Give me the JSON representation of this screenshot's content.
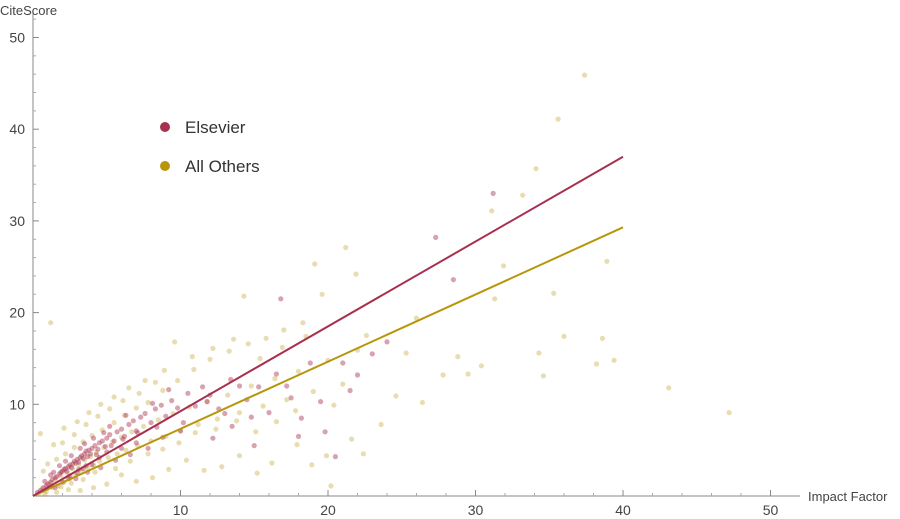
{
  "chart_data": {
    "type": "scatter",
    "title": "",
    "xlabel": "Impact Factor",
    "ylabel": "CiteScore",
    "xlim": [
      0,
      52
    ],
    "ylim": [
      0,
      53
    ],
    "xticks": [
      10,
      20,
      30,
      40,
      50
    ],
    "yticks": [
      10,
      20,
      30,
      40,
      50
    ],
    "legend_position": "top-left",
    "colors": {
      "Elsevier": "#a8304f",
      "All Others": "#b8960c"
    },
    "series": [
      {
        "name": "Elsevier",
        "fit_line": {
          "x": [
            0,
            40
          ],
          "y": [
            0,
            37
          ]
        },
        "points": [
          [
            0.3,
            0.4
          ],
          [
            0.5,
            0.6
          ],
          [
            0.7,
            0.9
          ],
          [
            0.9,
            1.1
          ],
          [
            1.0,
            1.3
          ],
          [
            1.2,
            1.5
          ],
          [
            1.3,
            1.8
          ],
          [
            1.5,
            2.0
          ],
          [
            1.6,
            2.1
          ],
          [
            1.8,
            2.4
          ],
          [
            1.9,
            2.6
          ],
          [
            2.0,
            2.7
          ],
          [
            2.1,
            2.9
          ],
          [
            2.2,
            3.0
          ],
          [
            2.3,
            2.7
          ],
          [
            2.4,
            3.2
          ],
          [
            2.5,
            3.4
          ],
          [
            2.6,
            3.1
          ],
          [
            2.7,
            3.5
          ],
          [
            2.8,
            3.8
          ],
          [
            2.9,
            3.6
          ],
          [
            3.0,
            4.0
          ],
          [
            3.1,
            3.7
          ],
          [
            3.2,
            4.2
          ],
          [
            3.3,
            4.4
          ],
          [
            3.4,
            4.1
          ],
          [
            3.5,
            4.6
          ],
          [
            3.6,
            4.9
          ],
          [
            3.7,
            4.3
          ],
          [
            3.8,
            5.0
          ],
          [
            3.9,
            4.6
          ],
          [
            4.0,
            5.2
          ],
          [
            4.2,
            5.5
          ],
          [
            4.4,
            5.1
          ],
          [
            4.5,
            5.8
          ],
          [
            4.7,
            6.0
          ],
          [
            4.9,
            5.4
          ],
          [
            5.0,
            6.3
          ],
          [
            5.2,
            6.7
          ],
          [
            5.5,
            6.0
          ],
          [
            5.7,
            7.0
          ],
          [
            6.0,
            7.3
          ],
          [
            6.2,
            6.5
          ],
          [
            6.5,
            7.8
          ],
          [
            6.8,
            8.2
          ],
          [
            7.0,
            7.1
          ],
          [
            7.3,
            8.6
          ],
          [
            7.6,
            9.0
          ],
          [
            8.0,
            8.0
          ],
          [
            8.3,
            9.5
          ],
          [
            8.7,
            9.9
          ],
          [
            9.0,
            8.7
          ],
          [
            9.4,
            10.4
          ],
          [
            9.8,
            9.6
          ],
          [
            10.5,
            11.2
          ],
          [
            11.0,
            9.8
          ],
          [
            11.5,
            11.9
          ],
          [
            12.0,
            11.0
          ],
          [
            12.6,
            9.5
          ],
          [
            13.4,
            12.7
          ],
          [
            14.0,
            12.0
          ],
          [
            14.5,
            10.5
          ],
          [
            15.3,
            11.9
          ],
          [
            15.0,
            5.5
          ],
          [
            16.5,
            13.3
          ],
          [
            16.8,
            21.5
          ],
          [
            17.5,
            10.7
          ],
          [
            18.2,
            8.5
          ],
          [
            18.8,
            14.5
          ],
          [
            19.5,
            10.3
          ],
          [
            19.8,
            7.0
          ],
          [
            21.0,
            14.5
          ],
          [
            22.0,
            13.2
          ],
          [
            23.0,
            15.5
          ],
          [
            24.0,
            16.8
          ],
          [
            27.3,
            28.2
          ],
          [
            28.5,
            23.6
          ],
          [
            31.2,
            33.0
          ],
          [
            1.5,
            0.9
          ],
          [
            2.0,
            1.5
          ],
          [
            2.4,
            1.9
          ],
          [
            3.0,
            2.5
          ],
          [
            3.4,
            3.0
          ],
          [
            4.0,
            3.4
          ],
          [
            4.5,
            4.2
          ],
          [
            5.0,
            4.8
          ],
          [
            6.0,
            5.2
          ],
          [
            7.0,
            5.8
          ],
          [
            1.2,
            2.3
          ],
          [
            1.8,
            3.3
          ],
          [
            2.6,
            4.4
          ],
          [
            3.2,
            5.2
          ],
          [
            4.1,
            6.3
          ],
          [
            5.2,
            7.6
          ],
          [
            0.8,
            1.6
          ],
          [
            1.4,
            2.6
          ],
          [
            2.2,
            3.8
          ],
          [
            3.5,
            5.7
          ],
          [
            4.8,
            6.9
          ],
          [
            6.3,
            8.8
          ],
          [
            8.1,
            10.1
          ],
          [
            9.2,
            11.6
          ],
          [
            10.2,
            8.0
          ],
          [
            11.8,
            10.3
          ],
          [
            13.0,
            9.0
          ],
          [
            2.9,
            1.9
          ],
          [
            3.7,
            2.6
          ],
          [
            4.6,
            3.1
          ],
          [
            5.6,
            3.9
          ],
          [
            6.6,
            4.5
          ],
          [
            7.8,
            5.2
          ],
          [
            8.8,
            6.4
          ],
          [
            10.0,
            7.1
          ],
          [
            12.2,
            6.3
          ],
          [
            13.5,
            7.6
          ],
          [
            14.8,
            8.6
          ],
          [
            16.0,
            9.1
          ],
          [
            17.2,
            12.0
          ],
          [
            18.0,
            6.5
          ],
          [
            20.5,
            4.3
          ],
          [
            21.5,
            11.5
          ],
          [
            2.5,
            2.2
          ],
          [
            3.1,
            2.9
          ],
          [
            3.6,
            3.3
          ],
          [
            4.3,
            4.5
          ],
          [
            5.3,
            5.5
          ],
          [
            6.1,
            6.2
          ],
          [
            7.1,
            6.9
          ],
          [
            8.4,
            7.5
          ]
        ]
      },
      {
        "name": "All Others",
        "fit_line": {
          "x": [
            0,
            40
          ],
          "y": [
            0,
            29.3
          ]
        },
        "points": [
          [
            0.4,
            0.3
          ],
          [
            0.6,
            0.8
          ],
          [
            0.9,
            0.5
          ],
          [
            1.1,
            1.4
          ],
          [
            1.3,
            0.9
          ],
          [
            1.5,
            1.7
          ],
          [
            1.7,
            1.1
          ],
          [
            1.9,
            2.2
          ],
          [
            2.1,
            1.5
          ],
          [
            2.3,
            2.5
          ],
          [
            2.5,
            1.9
          ],
          [
            2.7,
            3.0
          ],
          [
            2.9,
            2.3
          ],
          [
            3.1,
            3.4
          ],
          [
            3.3,
            2.7
          ],
          [
            3.5,
            3.9
          ],
          [
            3.7,
            3.1
          ],
          [
            3.9,
            4.3
          ],
          [
            4.1,
            3.4
          ],
          [
            4.3,
            4.8
          ],
          [
            4.5,
            3.8
          ],
          [
            4.8,
            5.3
          ],
          [
            5.1,
            4.2
          ],
          [
            5.4,
            5.9
          ],
          [
            5.7,
            4.6
          ],
          [
            6.0,
            6.4
          ],
          [
            6.3,
            5.0
          ],
          [
            6.7,
            7.0
          ],
          [
            7.1,
            5.5
          ],
          [
            7.5,
            7.6
          ],
          [
            8.0,
            6.0
          ],
          [
            8.5,
            8.3
          ],
          [
            9.0,
            6.5
          ],
          [
            9.5,
            9.0
          ],
          [
            10.0,
            7.1
          ],
          [
            10.6,
            9.7
          ],
          [
            11.2,
            7.8
          ],
          [
            11.8,
            10.3
          ],
          [
            12.5,
            8.4
          ],
          [
            13.2,
            11.0
          ],
          [
            14.0,
            9.1
          ],
          [
            14.8,
            12.0
          ],
          [
            15.6,
            9.8
          ],
          [
            16.4,
            12.8
          ],
          [
            17.2,
            10.5
          ],
          [
            18.0,
            13.6
          ],
          [
            19.0,
            11.4
          ],
          [
            20.0,
            14.8
          ],
          [
            21.0,
            12.2
          ],
          [
            22.0,
            15.9
          ],
          [
            0.7,
            2.7
          ],
          [
            1.0,
            3.5
          ],
          [
            1.6,
            4.0
          ],
          [
            2.2,
            4.6
          ],
          [
            2.8,
            5.3
          ],
          [
            3.4,
            5.9
          ],
          [
            4.0,
            6.6
          ],
          [
            4.7,
            7.2
          ],
          [
            5.5,
            8.0
          ],
          [
            6.2,
            8.8
          ],
          [
            7.0,
            9.6
          ],
          [
            7.8,
            10.2
          ],
          [
            8.8,
            11.5
          ],
          [
            9.8,
            12.6
          ],
          [
            10.9,
            13.8
          ],
          [
            12.0,
            14.9
          ],
          [
            13.3,
            15.8
          ],
          [
            14.6,
            16.6
          ],
          [
            15.8,
            17.2
          ],
          [
            17.0,
            18.1
          ],
          [
            18.3,
            18.9
          ],
          [
            1.2,
            18.9
          ],
          [
            0.5,
            6.8
          ],
          [
            1.4,
            5.6
          ],
          [
            2.1,
            7.4
          ],
          [
            3.0,
            8.1
          ],
          [
            3.8,
            9.1
          ],
          [
            4.6,
            10.0
          ],
          [
            5.5,
            10.8
          ],
          [
            6.5,
            11.8
          ],
          [
            7.6,
            12.6
          ],
          [
            8.9,
            13.7
          ],
          [
            9.6,
            16.8
          ],
          [
            10.8,
            15.2
          ],
          [
            12.2,
            16.1
          ],
          [
            13.6,
            17.1
          ],
          [
            14.3,
            21.8
          ],
          [
            15.4,
            15.0
          ],
          [
            16.9,
            16.2
          ],
          [
            18.5,
            17.4
          ],
          [
            19.1,
            25.3
          ],
          [
            19.6,
            22.0
          ],
          [
            21.2,
            27.1
          ],
          [
            21.9,
            24.2
          ],
          [
            22.6,
            17.5
          ],
          [
            25.3,
            15.6
          ],
          [
            26.0,
            19.4
          ],
          [
            28.8,
            15.2
          ],
          [
            29.5,
            13.3
          ],
          [
            31.1,
            31.1
          ],
          [
            31.3,
            21.5
          ],
          [
            31.9,
            25.1
          ],
          [
            33.2,
            32.8
          ],
          [
            34.1,
            35.7
          ],
          [
            34.3,
            15.6
          ],
          [
            34.6,
            13.1
          ],
          [
            35.3,
            22.1
          ],
          [
            35.6,
            41.1
          ],
          [
            36.0,
            17.4
          ],
          [
            37.4,
            45.9
          ],
          [
            38.2,
            14.4
          ],
          [
            38.6,
            17.2
          ],
          [
            38.9,
            25.6
          ],
          [
            39.4,
            14.8
          ],
          [
            43.1,
            11.8
          ],
          [
            47.2,
            9.1
          ],
          [
            20.4,
            9.9
          ],
          [
            21.6,
            6.2
          ],
          [
            22.4,
            4.6
          ],
          [
            24.6,
            10.9
          ],
          [
            26.4,
            10.2
          ],
          [
            27.8,
            13.2
          ],
          [
            30.4,
            14.2
          ],
          [
            23.6,
            7.8
          ],
          [
            20.2,
            1.1
          ],
          [
            17.9,
            5.6
          ],
          [
            18.9,
            3.4
          ],
          [
            19.9,
            4.4
          ],
          [
            16.2,
            3.6
          ],
          [
            15.2,
            2.5
          ],
          [
            14.0,
            4.4
          ],
          [
            12.8,
            3.2
          ],
          [
            11.6,
            2.8
          ],
          [
            10.4,
            3.9
          ],
          [
            9.2,
            2.9
          ],
          [
            8.1,
            2.0
          ],
          [
            7.0,
            1.6
          ],
          [
            6.0,
            2.3
          ],
          [
            5.0,
            1.3
          ],
          [
            4.1,
            0.9
          ],
          [
            3.2,
            0.6
          ],
          [
            2.4,
            0.7
          ],
          [
            1.6,
            0.4
          ],
          [
            0.8,
            0.2
          ],
          [
            1.9,
            1.0
          ],
          [
            2.6,
            1.4
          ],
          [
            3.4,
            1.8
          ],
          [
            4.2,
            2.6
          ],
          [
            5.6,
            3.0
          ],
          [
            6.6,
            3.8
          ],
          [
            7.8,
            4.6
          ],
          [
            8.8,
            5.1
          ],
          [
            9.9,
            5.8
          ],
          [
            11.0,
            6.9
          ],
          [
            12.4,
            7.3
          ],
          [
            13.8,
            8.2
          ],
          [
            15.1,
            7.0
          ],
          [
            16.5,
            8.1
          ],
          [
            17.8,
            9.3
          ],
          [
            2.0,
            5.8
          ],
          [
            2.8,
            6.7
          ],
          [
            3.6,
            7.8
          ],
          [
            4.4,
            8.7
          ],
          [
            5.2,
            9.5
          ],
          [
            6.1,
            10.4
          ],
          [
            7.2,
            11.2
          ],
          [
            8.3,
            12.4
          ]
        ]
      }
    ]
  }
}
